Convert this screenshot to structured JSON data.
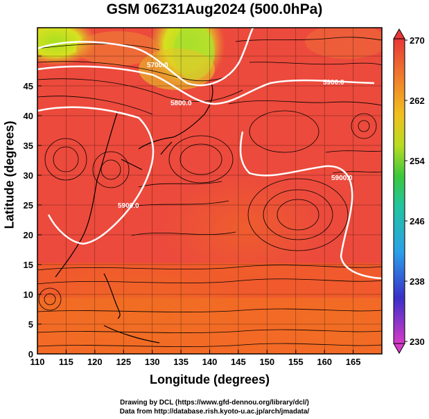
{
  "title": "GSM 06Z31Aug2024 (500.0hPa)",
  "axes": {
    "xlabel": "Longitude (degrees)",
    "ylabel": "Latitude  (degrees)",
    "xticks": [
      "110",
      "115",
      "120",
      "125",
      "130",
      "135",
      "140",
      "145",
      "150",
      "155",
      "160",
      "165"
    ],
    "yticks": [
      "0",
      "5",
      "10",
      "15",
      "20",
      "25",
      "30",
      "35",
      "40",
      "45"
    ]
  },
  "colorbar": {
    "ticks": [
      "270",
      "262",
      "254",
      "246",
      "238",
      "230"
    ],
    "range": [
      230,
      270
    ],
    "colors": [
      "#cc33cc",
      "#2222cc",
      "#22aaee",
      "#22cc44",
      "#e8dd20",
      "#f08a20",
      "#e84040"
    ]
  },
  "contours": {
    "labels": [
      "5700.0",
      "5800.0",
      "5900.0",
      "5900.0",
      "5900.0"
    ]
  },
  "credits": {
    "line1": "Drawing by DCL (https://www.gfd-dennou.org/library/dcl/)",
    "line2": "Data from http://database.rish.kyoto-u.ac.jp/arch/jmadata/"
  }
}
